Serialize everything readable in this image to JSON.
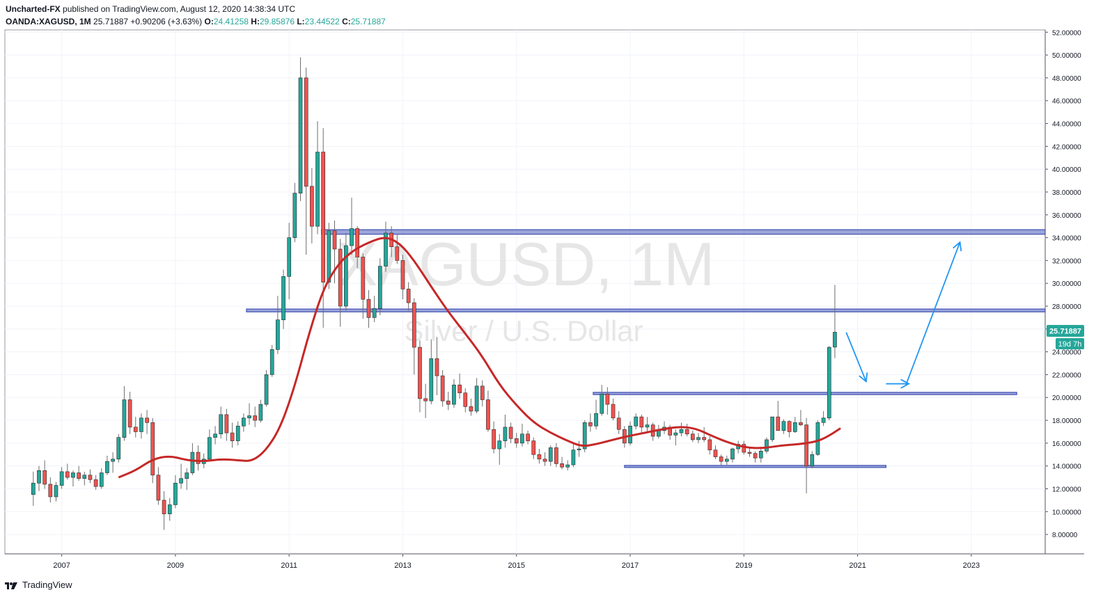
{
  "header": {
    "publisher": "Uncharted-FX",
    "published_text": "published on TradingView.com, August 12, 2020 14:38:34 UTC",
    "symbol": "OANDA:XAGUSD, 1M",
    "last": "25.71887",
    "change": "+0.90206 (+3.63%)",
    "o_label": "O:",
    "o_val": "24.41258",
    "h_label": "H:",
    "h_val": "29.85876",
    "l_label": "L:",
    "l_val": "23.44522",
    "c_label": "C:",
    "c_val": "25.71887"
  },
  "watermark": {
    "line1": "XAGUSD, 1M",
    "line2": "Silver / U.S. Dollar"
  },
  "footer": {
    "brand": "TradingView"
  },
  "price_tag": {
    "value": "25.71887",
    "countdown": "19d 7h"
  },
  "colors": {
    "up": "#26a69a",
    "down": "#ef5350",
    "ma": "#c62828",
    "zone": "#3f51b5",
    "zone_fill": "#7986cb",
    "arrow": "#2196f3",
    "tag": "#26a69a"
  },
  "chart_data": {
    "type": "candlestick",
    "xlim": [
      2006.0,
      2024.3
    ],
    "ylim": [
      6.3,
      52.2
    ],
    "y_ticks": [
      "8.00000",
      "10.00000",
      "12.00000",
      "14.00000",
      "16.00000",
      "18.00000",
      "20.00000",
      "22.00000",
      "24.00000",
      "26.00000",
      "28.00000",
      "30.00000",
      "32.00000",
      "34.00000",
      "36.00000",
      "38.00000",
      "40.00000",
      "42.00000",
      "44.00000",
      "46.00000",
      "48.00000",
      "50.00000",
      "52.00000"
    ],
    "x_ticks": [
      "2007",
      "2009",
      "2011",
      "2013",
      "2015",
      "2017",
      "2019",
      "2021",
      "2023"
    ],
    "ohlc": [
      [
        2006.5,
        11.5,
        13.5,
        10.5,
        12.5
      ],
      [
        2006.6,
        12.5,
        14.0,
        11.8,
        13.6
      ],
      [
        2006.7,
        13.6,
        14.5,
        12.0,
        12.4
      ],
      [
        2006.8,
        12.4,
        13.0,
        10.8,
        11.3
      ],
      [
        2006.9,
        11.3,
        12.6,
        10.9,
        12.3
      ],
      [
        2007.0,
        12.3,
        13.9,
        12.0,
        13.5
      ],
      [
        2007.1,
        13.5,
        14.2,
        12.8,
        13.0
      ],
      [
        2007.2,
        13.0,
        13.6,
        12.2,
        13.4
      ],
      [
        2007.3,
        13.4,
        14.0,
        12.7,
        12.9
      ],
      [
        2007.4,
        12.9,
        13.5,
        12.3,
        13.2
      ],
      [
        2007.5,
        13.2,
        13.7,
        12.5,
        12.8
      ],
      [
        2007.6,
        12.8,
        13.2,
        11.9,
        12.2
      ],
      [
        2007.7,
        12.2,
        13.8,
        12.0,
        13.4
      ],
      [
        2007.8,
        13.4,
        14.9,
        13.2,
        14.4
      ],
      [
        2007.9,
        14.4,
        15.2,
        13.4,
        14.6
      ],
      [
        2008.0,
        14.6,
        16.8,
        14.3,
        16.5
      ],
      [
        2008.1,
        16.5,
        21.0,
        16.2,
        19.8
      ],
      [
        2008.2,
        19.8,
        20.5,
        16.8,
        17.4
      ],
      [
        2008.3,
        17.4,
        18.3,
        16.5,
        17.0
      ],
      [
        2008.4,
        17.0,
        18.6,
        16.4,
        18.2
      ],
      [
        2008.5,
        18.2,
        18.9,
        16.8,
        17.8
      ],
      [
        2008.6,
        17.8,
        18.2,
        12.5,
        13.2
      ],
      [
        2008.7,
        13.2,
        13.9,
        10.6,
        11.0
      ],
      [
        2008.8,
        11.0,
        11.8,
        8.4,
        9.8
      ],
      [
        2008.9,
        9.8,
        11.2,
        9.2,
        10.6
      ],
      [
        2009.0,
        10.6,
        13.2,
        10.3,
        12.5
      ],
      [
        2009.1,
        12.5,
        14.2,
        12.0,
        12.9
      ],
      [
        2009.2,
        12.9,
        13.8,
        11.9,
        13.4
      ],
      [
        2009.3,
        13.4,
        16.0,
        13.2,
        15.2
      ],
      [
        2009.4,
        15.2,
        15.8,
        13.6,
        14.2
      ],
      [
        2009.5,
        14.2,
        15.1,
        13.8,
        14.6
      ],
      [
        2009.6,
        14.6,
        17.2,
        14.4,
        16.5
      ],
      [
        2009.7,
        16.5,
        17.5,
        15.9,
        16.8
      ],
      [
        2009.8,
        16.8,
        19.2,
        16.4,
        18.5
      ],
      [
        2009.9,
        18.5,
        19.0,
        16.2,
        16.9
      ],
      [
        2010.0,
        16.9,
        17.8,
        15.6,
        16.2
      ],
      [
        2010.1,
        16.2,
        17.9,
        15.8,
        17.5
      ],
      [
        2010.2,
        17.5,
        18.6,
        17.0,
        18.2
      ],
      [
        2010.3,
        18.2,
        19.5,
        17.6,
        18.4
      ],
      [
        2010.4,
        18.4,
        19.2,
        17.4,
        18.0
      ],
      [
        2010.5,
        18.0,
        19.8,
        17.8,
        19.4
      ],
      [
        2010.6,
        19.4,
        22.4,
        19.2,
        22.0
      ],
      [
        2010.7,
        22.0,
        24.6,
        21.8,
        24.2
      ],
      [
        2010.8,
        24.2,
        28.9,
        23.8,
        26.8
      ],
      [
        2010.9,
        26.8,
        31.2,
        26.0,
        30.6
      ],
      [
        2011.0,
        30.6,
        35.3,
        28.6,
        34.0
      ],
      [
        2011.1,
        34.0,
        38.8,
        33.6,
        37.9
      ],
      [
        2011.2,
        37.9,
        49.8,
        37.2,
        48.0
      ],
      [
        2011.3,
        48.0,
        48.9,
        32.5,
        38.5
      ],
      [
        2011.4,
        38.5,
        40.1,
        33.5,
        35.0
      ],
      [
        2011.5,
        35.0,
        44.2,
        34.3,
        41.5
      ],
      [
        2011.6,
        41.5,
        43.6,
        26.1,
        30.1
      ],
      [
        2011.7,
        30.1,
        35.3,
        29.5,
        34.6
      ],
      [
        2011.8,
        34.6,
        35.5,
        30.0,
        33.0
      ],
      [
        2011.9,
        33.0,
        33.9,
        26.2,
        28.0
      ],
      [
        2012.0,
        28.0,
        34.4,
        27.6,
        33.3
      ],
      [
        2012.1,
        33.3,
        37.5,
        32.5,
        34.8
      ],
      [
        2012.2,
        34.8,
        35.0,
        31.3,
        32.3
      ],
      [
        2012.3,
        32.3,
        32.6,
        26.9,
        28.6
      ],
      [
        2012.4,
        28.6,
        29.4,
        26.1,
        27.0
      ],
      [
        2012.5,
        27.0,
        28.9,
        26.6,
        27.8
      ],
      [
        2012.6,
        27.8,
        32.2,
        27.2,
        31.5
      ],
      [
        2012.7,
        31.5,
        35.4,
        31.0,
        34.4
      ],
      [
        2012.8,
        34.4,
        35.0,
        32.3,
        33.2
      ],
      [
        2012.9,
        33.2,
        34.3,
        31.7,
        32.0
      ],
      [
        2013.0,
        32.0,
        32.5,
        28.6,
        29.5
      ],
      [
        2013.1,
        29.5,
        30.1,
        27.6,
        28.3
      ],
      [
        2013.2,
        28.3,
        28.7,
        22.0,
        24.4
      ],
      [
        2013.3,
        24.4,
        25.0,
        18.7,
        19.9
      ],
      [
        2013.4,
        19.9,
        21.2,
        18.2,
        19.7
      ],
      [
        2013.5,
        19.7,
        25.1,
        19.4,
        23.4
      ],
      [
        2013.6,
        23.4,
        25.3,
        20.2,
        21.9
      ],
      [
        2013.7,
        21.9,
        22.4,
        19.2,
        19.7
      ],
      [
        2013.8,
        19.7,
        20.5,
        18.9,
        19.4
      ],
      [
        2013.9,
        19.4,
        21.6,
        19.1,
        21.1
      ],
      [
        2014.0,
        21.1,
        22.1,
        19.9,
        20.4
      ],
      [
        2014.1,
        20.4,
        20.8,
        18.7,
        19.2
      ],
      [
        2014.2,
        19.2,
        19.9,
        18.4,
        18.8
      ],
      [
        2014.3,
        18.8,
        21.7,
        18.6,
        21.0
      ],
      [
        2014.4,
        21.0,
        21.5,
        19.2,
        19.8
      ],
      [
        2014.5,
        19.8,
        20.6,
        17.0,
        17.2
      ],
      [
        2014.6,
        17.2,
        17.9,
        15.1,
        15.5
      ],
      [
        2014.7,
        15.5,
        16.8,
        14.1,
        16.2
      ],
      [
        2014.8,
        16.2,
        18.5,
        15.6,
        17.4
      ],
      [
        2014.9,
        17.4,
        17.8,
        16.0,
        16.4
      ],
      [
        2015.0,
        16.4,
        16.9,
        15.6,
        16.0
      ],
      [
        2015.1,
        16.0,
        17.7,
        15.7,
        16.8
      ],
      [
        2015.2,
        16.8,
        17.1,
        15.9,
        16.2
      ],
      [
        2015.3,
        16.2,
        16.5,
        14.6,
        15.0
      ],
      [
        2015.4,
        15.0,
        15.5,
        14.2,
        14.6
      ],
      [
        2015.5,
        14.6,
        15.2,
        14.0,
        14.4
      ],
      [
        2015.6,
        14.4,
        15.8,
        14.0,
        15.6
      ],
      [
        2015.7,
        15.6,
        16.0,
        13.9,
        14.2
      ],
      [
        2015.8,
        14.2,
        14.8,
        13.7,
        13.9
      ],
      [
        2015.9,
        13.9,
        14.5,
        13.6,
        14.1
      ],
      [
        2016.0,
        14.1,
        15.9,
        13.9,
        15.4
      ],
      [
        2016.1,
        15.4,
        16.2,
        14.8,
        15.5
      ],
      [
        2016.2,
        15.5,
        18.0,
        15.2,
        17.8
      ],
      [
        2016.3,
        17.8,
        18.6,
        17.0,
        17.5
      ],
      [
        2016.4,
        17.5,
        19.8,
        17.2,
        18.6
      ],
      [
        2016.5,
        18.6,
        21.1,
        18.4,
        20.3
      ],
      [
        2016.6,
        20.3,
        20.9,
        18.5,
        19.4
      ],
      [
        2016.7,
        19.4,
        19.9,
        18.0,
        18.2
      ],
      [
        2016.8,
        18.2,
        18.8,
        16.8,
        17.2
      ],
      [
        2016.9,
        17.2,
        17.5,
        15.6,
        16.0
      ],
      [
        2017.0,
        16.0,
        17.9,
        15.8,
        17.5
      ],
      [
        2017.1,
        17.5,
        18.6,
        17.2,
        18.3
      ],
      [
        2017.2,
        18.3,
        18.5,
        16.9,
        17.4
      ],
      [
        2017.3,
        17.4,
        18.3,
        17.0,
        17.6
      ],
      [
        2017.4,
        17.6,
        17.8,
        16.2,
        16.6
      ],
      [
        2017.5,
        16.6,
        17.6,
        16.4,
        17.1
      ],
      [
        2017.6,
        17.1,
        17.9,
        16.8,
        17.4
      ],
      [
        2017.7,
        17.4,
        17.6,
        16.3,
        16.7
      ],
      [
        2017.8,
        16.7,
        17.2,
        15.8,
        16.9
      ],
      [
        2017.9,
        16.9,
        17.8,
        16.6,
        17.2
      ],
      [
        2018.0,
        17.2,
        17.7,
        16.6,
        16.8
      ],
      [
        2018.1,
        16.8,
        17.1,
        16.1,
        16.3
      ],
      [
        2018.2,
        16.3,
        16.9,
        16.0,
        16.5
      ],
      [
        2018.3,
        16.5,
        17.4,
        16.1,
        16.3
      ],
      [
        2018.4,
        16.3,
        16.6,
        15.0,
        15.4
      ],
      [
        2018.5,
        15.4,
        15.8,
        14.6,
        14.8
      ],
      [
        2018.6,
        14.8,
        15.0,
        14.0,
        14.4
      ],
      [
        2018.7,
        14.4,
        14.9,
        14.1,
        14.6
      ],
      [
        2018.8,
        14.6,
        15.6,
        14.3,
        15.5
      ],
      [
        2018.9,
        15.5,
        16.2,
        15.1,
        15.9
      ],
      [
        2019.0,
        15.9,
        16.2,
        15.0,
        15.2
      ],
      [
        2019.1,
        15.2,
        15.6,
        14.8,
        15.1
      ],
      [
        2019.2,
        15.1,
        15.3,
        14.3,
        14.7
      ],
      [
        2019.3,
        14.7,
        15.5,
        14.3,
        15.3
      ],
      [
        2019.4,
        15.3,
        16.5,
        15.1,
        16.3
      ],
      [
        2019.5,
        16.3,
        18.3,
        16.1,
        18.3
      ],
      [
        2019.6,
        18.3,
        19.7,
        17.2,
        17.1
      ],
      [
        2019.7,
        17.1,
        18.1,
        16.8,
        17.9
      ],
      [
        2019.8,
        17.9,
        18.0,
        16.5,
        17.0
      ],
      [
        2019.9,
        17.0,
        18.3,
        16.9,
        17.8
      ],
      [
        2020.0,
        17.8,
        18.9,
        17.5,
        17.6
      ],
      [
        2020.1,
        17.6,
        18.2,
        11.6,
        14.0
      ],
      [
        2020.2,
        14.0,
        15.3,
        13.8,
        15.0
      ],
      [
        2020.3,
        15.0,
        18.0,
        14.9,
        17.8
      ],
      [
        2020.4,
        17.8,
        18.8,
        17.5,
        18.2
      ],
      [
        2020.5,
        18.2,
        24.5,
        18.0,
        24.4
      ],
      [
        2020.6,
        24.41258,
        29.85876,
        23.44522,
        25.71887
      ]
    ],
    "ma": [
      [
        2008.0,
        13.0
      ],
      [
        2008.3,
        13.6
      ],
      [
        2008.6,
        14.6
      ],
      [
        2008.9,
        14.9
      ],
      [
        2009.2,
        14.5
      ],
      [
        2009.5,
        14.4
      ],
      [
        2009.8,
        14.6
      ],
      [
        2010.1,
        14.5
      ],
      [
        2010.35,
        14.4
      ],
      [
        2010.6,
        15.4
      ],
      [
        2010.85,
        17.4
      ],
      [
        2011.1,
        21.0
      ],
      [
        2011.35,
        25.6
      ],
      [
        2011.6,
        29.5
      ],
      [
        2011.85,
        31.6
      ],
      [
        2012.1,
        32.8
      ],
      [
        2012.4,
        33.6
      ],
      [
        2012.7,
        34.1
      ],
      [
        2012.95,
        33.5
      ],
      [
        2013.2,
        32.0
      ],
      [
        2013.5,
        29.7
      ],
      [
        2013.8,
        27.5
      ],
      [
        2014.1,
        25.6
      ],
      [
        2014.4,
        23.6
      ],
      [
        2014.7,
        21.1
      ],
      [
        2015.0,
        19.3
      ],
      [
        2015.3,
        17.8
      ],
      [
        2015.6,
        16.9
      ],
      [
        2015.9,
        16.2
      ],
      [
        2016.15,
        15.7
      ],
      [
        2016.4,
        15.9
      ],
      [
        2016.7,
        16.3
      ],
      [
        2016.95,
        16.6
      ],
      [
        2017.25,
        16.9
      ],
      [
        2017.55,
        17.2
      ],
      [
        2017.85,
        17.45
      ],
      [
        2018.15,
        17.3
      ],
      [
        2018.45,
        16.6
      ],
      [
        2018.75,
        16.0
      ],
      [
        2019.05,
        15.6
      ],
      [
        2019.35,
        15.55
      ],
      [
        2019.65,
        15.8
      ],
      [
        2019.95,
        15.9
      ],
      [
        2020.25,
        16.1
      ],
      [
        2020.45,
        16.5
      ],
      [
        2020.7,
        17.3
      ]
    ],
    "zones": [
      {
        "x0": 2011.57,
        "x1": 2024.3,
        "y0": 34.3,
        "y1": 34.7
      },
      {
        "x0": 2010.25,
        "x1": 2024.3,
        "y0": 27.5,
        "y1": 27.75
      },
      {
        "x0": 2016.35,
        "x1": 2023.8,
        "y0": 20.25,
        "y1": 20.45
      },
      {
        "x0": 2016.9,
        "x1": 2021.5,
        "y0": 13.9,
        "y1": 14.05
      }
    ],
    "arrows": [
      {
        "x0": 2020.8,
        "y0": 25.7,
        "x1": 2021.15,
        "y1": 21.4
      },
      {
        "x0": 2021.5,
        "y0": 21.2,
        "x1": 2021.9,
        "y1": 21.2
      },
      {
        "x0": 2021.85,
        "y0": 21.1,
        "x1": 2022.8,
        "y1": 33.6
      }
    ]
  }
}
